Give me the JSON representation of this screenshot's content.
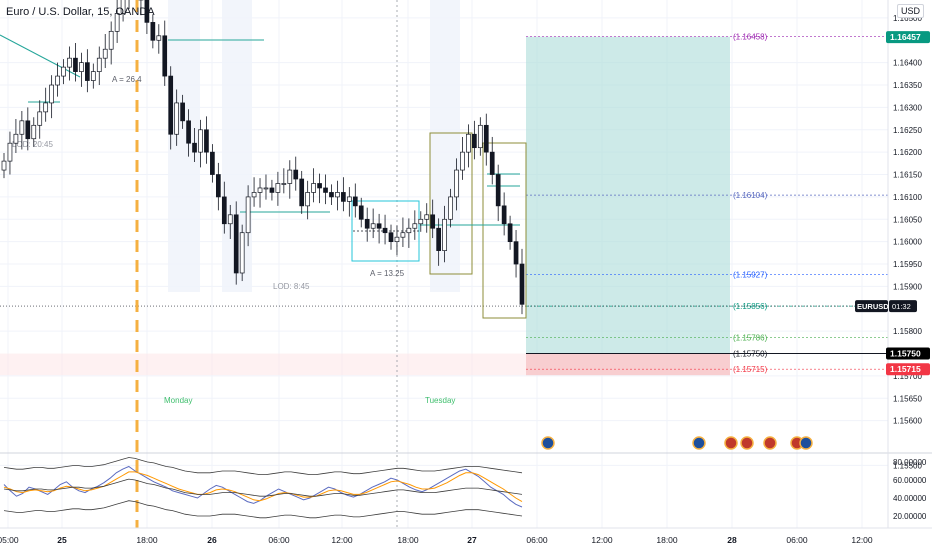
{
  "symbol": {
    "title": "Euro / U.S. Dollar, 15, OANDA"
  },
  "currency_button": "USD",
  "price_axis": {
    "ticks": [
      "1.16500",
      "1.16400",
      "1.16350",
      "1.16300",
      "1.16250",
      "1.16200",
      "1.16150",
      "1.16100",
      "1.16050",
      "1.16000",
      "1.15950",
      "1.15900",
      "1.15800",
      "1.15700",
      "1.15650",
      "1.15600",
      "1.15500"
    ],
    "tick_values": [
      1.165,
      1.164,
      1.1635,
      1.163,
      1.1625,
      1.162,
      1.1615,
      1.161,
      1.1605,
      1.16,
      1.1595,
      1.159,
      1.158,
      1.157,
      1.1565,
      1.156,
      1.155
    ],
    "badges": [
      {
        "value": 1.16457,
        "text": "1.16457",
        "color": "#089981"
      },
      {
        "value": 1.1575,
        "text": "1.15750",
        "color": "#000000"
      },
      {
        "value": 1.15715,
        "text": "1.15715",
        "color": "#f23645"
      }
    ],
    "symbol_badge": {
      "value": 1.15856,
      "label": "EURUSD",
      "countdown": "01:32"
    }
  },
  "position_levels": [
    {
      "value": 1.16458,
      "text": "(1.16458)",
      "color": "#9c27b0"
    },
    {
      "value": 1.16104,
      "text": "(1.16104)",
      "color": "#5b6bc0"
    },
    {
      "value": 1.15927,
      "text": "(1.15927)",
      "color": "#2962ff"
    },
    {
      "value": 1.15856,
      "text": "(1.15856)",
      "color": "#089981"
    },
    {
      "value": 1.15786,
      "text": "(1.15786)",
      "color": "#4caf50"
    },
    {
      "value": 1.1575,
      "text": "(1.15750)",
      "color": "#131722"
    },
    {
      "value": 1.15715,
      "text": "(1.15715)",
      "color": "#f23645"
    }
  ],
  "annotations": {
    "a1": "A = 26.4",
    "a2": "A = 13.25",
    "lod1": "LOD: 20:45",
    "lod2": "LOD: 8:45",
    "day1": "Monday",
    "day2": "Tuesday"
  },
  "indicator_axis": {
    "ticks": [
      "80.00000",
      "60.00000",
      "40.00000",
      "20.00000"
    ],
    "values": [
      80,
      60,
      40,
      20
    ]
  },
  "time_axis": {
    "labels": [
      "05:00",
      "25",
      "18:00",
      "26",
      "06:00",
      "12:00",
      "18:00",
      "27",
      "06:00",
      "12:00",
      "18:00",
      "28",
      "06:00",
      "12:00"
    ],
    "bold": [
      "25",
      "26",
      "27",
      "28"
    ]
  },
  "chart_data": {
    "type": "candlestick",
    "timeframe": "15",
    "price_scale_range": [
      1.1553,
      1.1654
    ],
    "candle_closes": [
      1.1618,
      1.1622,
      1.1624,
      1.1627,
      1.1623,
      1.1626,
      1.1629,
      1.1631,
      1.1635,
      1.1637,
      1.1639,
      1.1641,
      1.1638,
      1.164,
      1.1636,
      1.1638,
      1.1641,
      1.1643,
      1.1647,
      1.1651,
      1.1655,
      1.1661,
      1.1658,
      1.1654,
      1.1649,
      1.1645,
      1.1646,
      1.1637,
      1.1624,
      1.1631,
      1.1627,
      1.1622,
      1.162,
      1.1625,
      1.162,
      1.1615,
      1.161,
      1.1604,
      1.1606,
      1.1593,
      1.1602,
      1.161,
      1.1611,
      1.1612,
      1.1612,
      1.1611,
      1.1613,
      1.1613,
      1.1616,
      1.1614,
      1.1608,
      1.1611,
      1.1613,
      1.1612,
      1.1611,
      1.161,
      1.1611,
      1.1609,
      1.161,
      1.1608,
      1.1605,
      1.1603,
      1.1604,
      1.1603,
      1.1602,
      1.16,
      1.1601,
      1.1602,
      1.1603,
      1.1604,
      1.1605,
      1.1606,
      1.1603,
      1.1598,
      1.1605,
      1.161,
      1.1616,
      1.162,
      1.1624,
      1.1621,
      1.1626,
      1.162,
      1.1615,
      1.1608,
      1.1604,
      1.16,
      1.1595,
      1.1586
    ],
    "oscillator": {
      "ylim": [
        10,
        90
      ],
      "series": [
        {
          "values": [
            55,
            48,
            42,
            45,
            52,
            50,
            47,
            44,
            49,
            55,
            58,
            52,
            48,
            46,
            50,
            53,
            57,
            62,
            68,
            72,
            75,
            70,
            66,
            62,
            58,
            55,
            52,
            48,
            46,
            44,
            42,
            40,
            45,
            50,
            54,
            52,
            48,
            44,
            40,
            36,
            34,
            37,
            42,
            46,
            50,
            47,
            44,
            41,
            38,
            40,
            44,
            48,
            52,
            50,
            46,
            43,
            41,
            44,
            48,
            52,
            55,
            58,
            62,
            60,
            56,
            52,
            49,
            47,
            50,
            54,
            58,
            62,
            66,
            70,
            72,
            68,
            64,
            58,
            52,
            48,
            44,
            38,
            33,
            30
          ]
        },
        {
          "values": [
            52,
            50,
            47,
            46,
            48,
            49,
            48,
            47,
            48,
            51,
            53,
            52,
            50,
            48,
            49,
            51,
            53,
            57,
            61,
            65,
            69,
            69,
            67,
            65,
            62,
            59,
            56,
            53,
            50,
            48,
            46,
            44,
            44,
            46,
            49,
            50,
            49,
            47,
            44,
            41,
            38,
            37,
            39,
            42,
            45,
            46,
            45,
            43,
            41,
            41,
            42,
            45,
            48,
            49,
            48,
            46,
            44,
            44,
            46,
            49,
            52,
            55,
            58,
            59,
            57,
            55,
            52,
            50,
            50,
            51,
            54,
            57,
            61,
            65,
            68,
            68,
            66,
            62,
            58,
            54,
            50,
            45,
            40,
            36
          ]
        },
        {
          "values": [
            74,
            73,
            72,
            72,
            73,
            74,
            74,
            73,
            73,
            74,
            75,
            76,
            76,
            75,
            75,
            76,
            77,
            79,
            81,
            83,
            85,
            84,
            82,
            80,
            79,
            77,
            75,
            74,
            72,
            70,
            69,
            68,
            68,
            68,
            69,
            70,
            70,
            70,
            69,
            68,
            67,
            66,
            66,
            67,
            68,
            69,
            69,
            68,
            67,
            66,
            66,
            67,
            68,
            69,
            69,
            68,
            67,
            67,
            68,
            69,
            70,
            71,
            72,
            73,
            73,
            72,
            71,
            70,
            70,
            70,
            71,
            72,
            73,
            74,
            75,
            75,
            75,
            74,
            73,
            72,
            71,
            70,
            69,
            68
          ]
        },
        {
          "values": [
            50,
            49,
            48,
            48,
            49,
            50,
            50,
            49,
            49,
            50,
            51,
            52,
            52,
            51,
            51,
            52,
            53,
            55,
            57,
            59,
            61,
            60,
            58,
            56,
            55,
            53,
            51,
            50,
            48,
            46,
            45,
            44,
            44,
            44,
            45,
            46,
            46,
            46,
            45,
            44,
            43,
            42,
            42,
            43,
            44,
            45,
            45,
            44,
            43,
            42,
            42,
            43,
            44,
            45,
            45,
            44,
            43,
            43,
            44,
            45,
            46,
            47,
            48,
            49,
            49,
            48,
            47,
            46,
            46,
            46,
            47,
            48,
            49,
            50,
            51,
            51,
            51,
            50,
            49,
            48,
            47,
            46,
            45,
            44
          ]
        },
        {
          "values": [
            26,
            25,
            24,
            24,
            25,
            26,
            26,
            25,
            25,
            26,
            27,
            28,
            28,
            27,
            27,
            28,
            29,
            31,
            33,
            35,
            37,
            36,
            34,
            32,
            31,
            29,
            27,
            26,
            24,
            22,
            21,
            20,
            20,
            20,
            21,
            22,
            22,
            22,
            21,
            20,
            19,
            18,
            18,
            19,
            20,
            21,
            21,
            20,
            19,
            18,
            18,
            19,
            20,
            21,
            21,
            20,
            19,
            19,
            20,
            21,
            22,
            23,
            24,
            25,
            25,
            24,
            23,
            22,
            22,
            22,
            23,
            24,
            25,
            26,
            27,
            27,
            27,
            26,
            25,
            24,
            23,
            22,
            21,
            20
          ]
        }
      ]
    }
  }
}
